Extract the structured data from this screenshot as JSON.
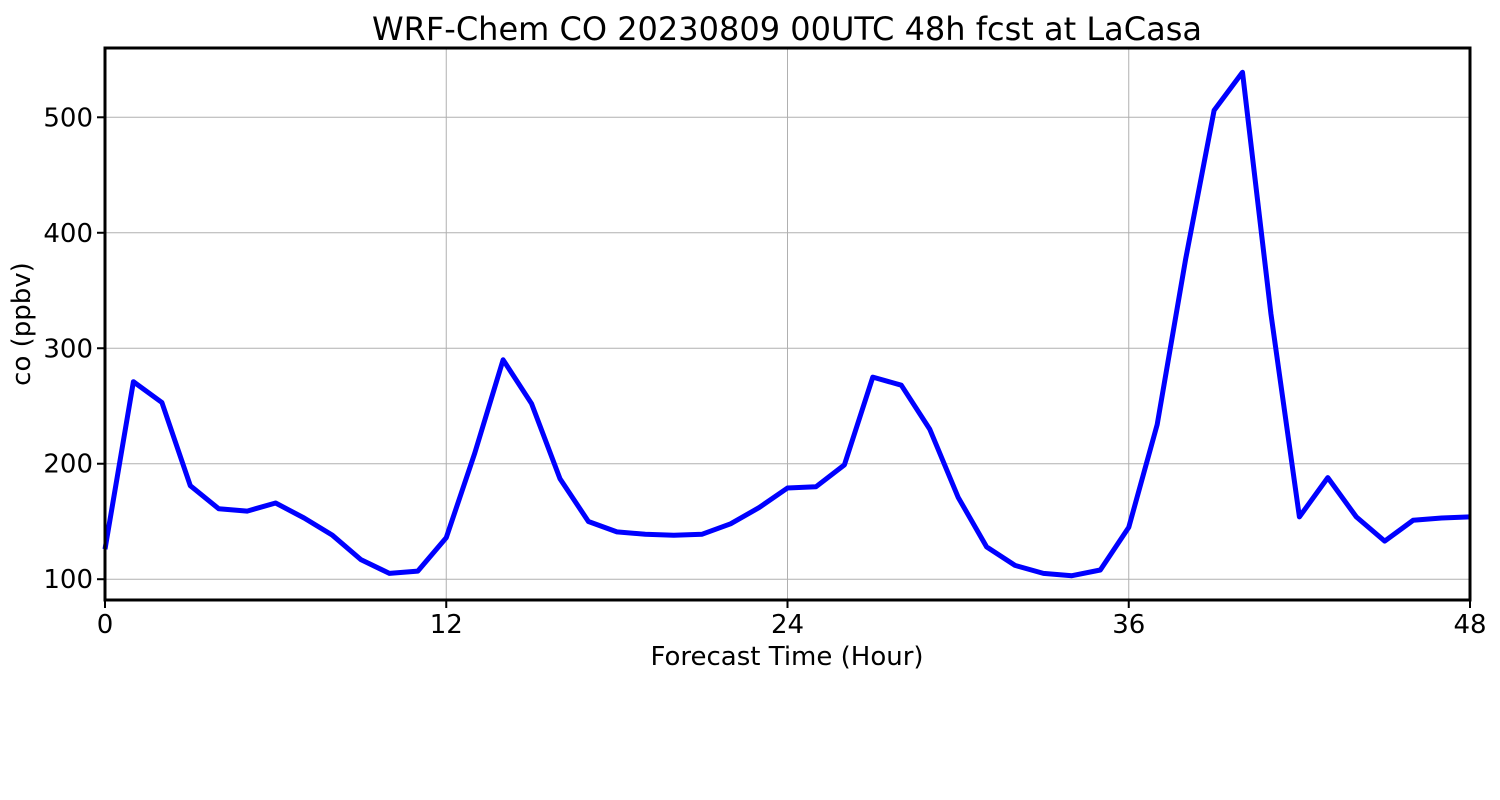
{
  "chart_data": {
    "type": "line",
    "title": "WRF-Chem CO  20230809 00UTC 48h fcst at LaCasa",
    "xlabel": "Forecast Time (Hour)",
    "ylabel": "co  (ppbv)",
    "xlim": [
      0,
      48
    ],
    "ylim": [
      82,
      560
    ],
    "xticks": [
      0,
      12,
      24,
      36,
      48
    ],
    "yticks": [
      100,
      200,
      300,
      400,
      500
    ],
    "grid": true,
    "line_color": "#0000ff",
    "series": [
      {
        "x": [
          0,
          1,
          2,
          3,
          4,
          5,
          6,
          7,
          8,
          9,
          10,
          11,
          12,
          13,
          14,
          15,
          16,
          17,
          18,
          19,
          20,
          21,
          22,
          23,
          24,
          25,
          26,
          27,
          28,
          29,
          30,
          31,
          32,
          33,
          34,
          35,
          36,
          37,
          38,
          39,
          40,
          41,
          42,
          43,
          44,
          45,
          46,
          47,
          48
        ],
        "values": [
          126,
          271,
          253,
          181,
          161,
          159,
          166,
          153,
          138,
          117,
          105,
          107,
          136,
          209,
          290,
          252,
          187,
          150,
          141,
          139,
          138,
          139,
          148,
          162,
          179,
          180,
          199,
          275,
          268,
          230,
          171,
          128,
          112,
          105,
          103,
          108,
          145,
          234,
          377,
          506,
          539,
          330,
          154,
          188,
          154,
          133,
          151,
          153,
          154
        ]
      }
    ]
  }
}
